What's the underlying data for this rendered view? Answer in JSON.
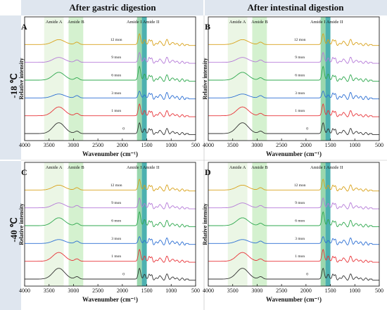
{
  "figure": {
    "column_titles": [
      "After gastric digestion",
      "After intestinal digestion"
    ],
    "row_titles": [
      "-18 ℃",
      "-40 ℃"
    ]
  },
  "colors": {
    "amide_a_band": "#e8f5e0",
    "amide_b_band": "#cdeec7",
    "amide_i_band": "#8fd3a4",
    "amide_ii_band": "#3aa9a7",
    "header_bg": "#dfe6ef"
  },
  "chart_data": [
    {
      "panel": "A",
      "type": "line",
      "xlabel": "Wavenumber (cm⁻¹)",
      "ylabel": "Relative intensity",
      "xlim": [
        4000,
        500
      ],
      "xticks": [
        4000,
        3500,
        3000,
        2500,
        2000,
        1500,
        1000,
        500
      ],
      "bands": [
        {
          "label": "Amide A",
          "range": [
            3600,
            3200
          ]
        },
        {
          "label": "Amide B",
          "range": [
            3100,
            2800
          ]
        },
        {
          "label": "Amide I",
          "range": [
            1700,
            1600
          ]
        },
        {
          "label": "Amide II",
          "range": [
            1600,
            1500
          ]
        }
      ],
      "series": [
        {
          "name": "0",
          "color": "#333333"
        },
        {
          "name": "1 mon",
          "color": "#e8353a"
        },
        {
          "name": "3 mon",
          "color": "#2c6fd4"
        },
        {
          "name": "6 mon",
          "color": "#2fa84f"
        },
        {
          "name": "9 mon",
          "color": "#b57ad8"
        },
        {
          "name": "12 mon",
          "color": "#d9a21b"
        }
      ]
    },
    {
      "panel": "B",
      "type": "line",
      "xlabel": "Wavenumber (cm⁻¹)",
      "ylabel": "Relative intensity",
      "xlim": [
        4000,
        500
      ],
      "xticks": [
        4000,
        3500,
        3000,
        2500,
        2000,
        1500,
        1000,
        500
      ],
      "bands": [
        {
          "label": "Amide A",
          "range": [
            3600,
            3200
          ]
        },
        {
          "label": "Amide B",
          "range": [
            3100,
            2800
          ]
        },
        {
          "label": "Amide I",
          "range": [
            1700,
            1600
          ]
        },
        {
          "label": "Amide II",
          "range": [
            1600,
            1500
          ]
        }
      ],
      "series": [
        {
          "name": "0",
          "color": "#333333"
        },
        {
          "name": "1 mon",
          "color": "#e8353a"
        },
        {
          "name": "3 mon",
          "color": "#2c6fd4"
        },
        {
          "name": "6 mon",
          "color": "#2fa84f"
        },
        {
          "name": "9 mon",
          "color": "#b57ad8"
        },
        {
          "name": "12 mon",
          "color": "#d9a21b"
        }
      ]
    },
    {
      "panel": "C",
      "type": "line",
      "xlabel": "Wavenumber (cm⁻¹)",
      "ylabel": "Relative intensity",
      "xlim": [
        4000,
        500
      ],
      "xticks": [
        4000,
        3500,
        3000,
        2500,
        2000,
        1500,
        1000,
        500
      ],
      "bands": [
        {
          "label": "Amide A",
          "range": [
            3600,
            3200
          ]
        },
        {
          "label": "Amide B",
          "range": [
            3100,
            2800
          ]
        },
        {
          "label": "Amide I",
          "range": [
            1700,
            1600
          ]
        },
        {
          "label": "Amide II",
          "range": [
            1600,
            1500
          ]
        }
      ],
      "series": [
        {
          "name": "0",
          "color": "#333333"
        },
        {
          "name": "1 mon",
          "color": "#e8353a"
        },
        {
          "name": "3 mon",
          "color": "#2c6fd4"
        },
        {
          "name": "6 mon",
          "color": "#2fa84f"
        },
        {
          "name": "9 mon",
          "color": "#b57ad8"
        },
        {
          "name": "12 mon",
          "color": "#d9a21b"
        }
      ]
    },
    {
      "panel": "D",
      "type": "line",
      "xlabel": "Wavenumber (cm⁻¹)",
      "ylabel": "Relative intensity",
      "xlim": [
        4000,
        500
      ],
      "xticks": [
        4000,
        3500,
        3000,
        2500,
        2000,
        1500,
        1000,
        500
      ],
      "bands": [
        {
          "label": "Amide A",
          "range": [
            3600,
            3200
          ]
        },
        {
          "label": "Amide B",
          "range": [
            3100,
            2800
          ]
        },
        {
          "label": "Amide I",
          "range": [
            1700,
            1600
          ]
        },
        {
          "label": "Amide II",
          "range": [
            1600,
            1500
          ]
        }
      ],
      "series": [
        {
          "name": "0",
          "color": "#333333"
        },
        {
          "name": "1 mon",
          "color": "#e8353a"
        },
        {
          "name": "3 mon",
          "color": "#2c6fd4"
        },
        {
          "name": "6 mon",
          "color": "#2fa84f"
        },
        {
          "name": "9 mon",
          "color": "#b57ad8"
        },
        {
          "name": "12 mon",
          "color": "#d9a21b"
        }
      ]
    }
  ]
}
